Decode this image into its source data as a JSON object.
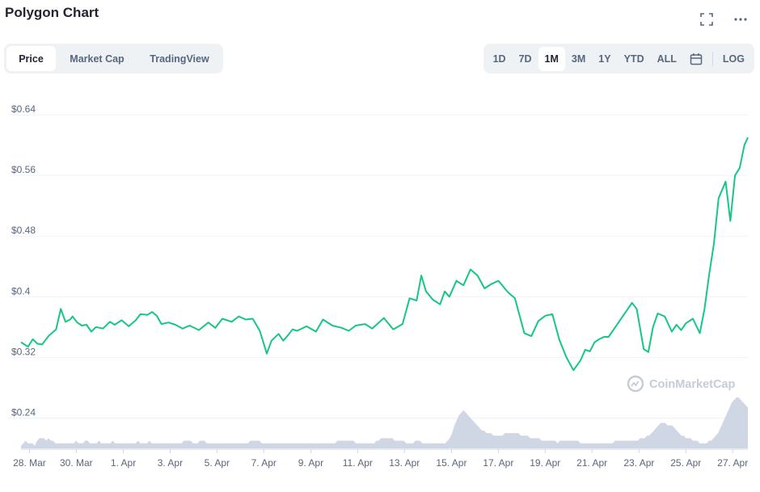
{
  "header": {
    "title": "Polygon Chart",
    "fullscreen_icon": "expand-icon",
    "more_icon": "more-dots-icon"
  },
  "tabs": [
    {
      "label": "Price",
      "active": true
    },
    {
      "label": "Market Cap",
      "active": false
    },
    {
      "label": "TradingView",
      "active": false
    }
  ],
  "ranges": [
    {
      "label": "1D",
      "active": false
    },
    {
      "label": "7D",
      "active": false
    },
    {
      "label": "1M",
      "active": true
    },
    {
      "label": "3M",
      "active": false
    },
    {
      "label": "1Y",
      "active": false
    },
    {
      "label": "YTD",
      "active": false
    },
    {
      "label": "ALL",
      "active": false
    }
  ],
  "range_extra": {
    "calendar_icon": "calendar-icon",
    "log_label": "LOG"
  },
  "watermark": "CoinMarketCap",
  "colors": {
    "line": "#16c784",
    "volume": "#cfd6e4",
    "grid": "#eff2f5",
    "text": "#58667e"
  },
  "chart_data": {
    "type": "line",
    "title": "",
    "ylabel": "",
    "xlabel": "",
    "ylim": [
      0.2,
      0.655
    ],
    "yticks": [
      {
        "label": "$0.64",
        "value": 0.64
      },
      {
        "label": "$0.56",
        "value": 0.56
      },
      {
        "label": "$0.48",
        "value": 0.48
      },
      {
        "label": "$0.4",
        "value": 0.4
      },
      {
        "label": "$0.32",
        "value": 0.32
      },
      {
        "label": "$0.24",
        "value": 0.24
      }
    ],
    "xticks": [
      {
        "label": "28. Mar",
        "x": 0.36
      },
      {
        "label": "30. Mar",
        "x": 2.36
      },
      {
        "label": "1. Apr",
        "x": 4.37
      },
      {
        "label": "3. Apr",
        "x": 6.37
      },
      {
        "label": "5. Apr",
        "x": 8.37
      },
      {
        "label": "7. Apr",
        "x": 10.37
      },
      {
        "label": "9. Apr",
        "x": 12.38
      },
      {
        "label": "11. Apr",
        "x": 14.38
      },
      {
        "label": "13. Apr",
        "x": 16.38
      },
      {
        "label": "15. Apr",
        "x": 18.39
      },
      {
        "label": "17. Apr",
        "x": 20.39
      },
      {
        "label": "19. Apr",
        "x": 22.39
      },
      {
        "label": "21. Apr",
        "x": 24.39
      },
      {
        "label": "23. Apr",
        "x": 26.4
      },
      {
        "label": "25. Apr",
        "x": 28.4
      },
      {
        "label": "27. Apr",
        "x": 30.4
      }
    ],
    "x_unit": "days",
    "series": [
      {
        "name": "",
        "x": [
          0.0,
          0.3,
          0.5,
          0.7,
          0.9,
          1.2,
          1.5,
          1.7,
          1.9,
          2.1,
          2.2,
          2.4,
          2.6,
          2.8,
          3.0,
          3.2,
          3.5,
          3.8,
          4.0,
          4.3,
          4.6,
          4.9,
          5.1,
          5.4,
          5.6,
          5.8,
          6.0,
          6.3,
          6.6,
          6.9,
          7.2,
          7.6,
          8.0,
          8.3,
          8.6,
          9.0,
          9.3,
          9.6,
          9.9,
          10.2,
          10.5,
          10.7,
          11.0,
          11.2,
          11.4,
          11.6,
          11.8,
          12.2,
          12.6,
          12.9,
          13.3,
          13.7,
          14.0,
          14.3,
          14.7,
          15.0,
          15.5,
          15.9,
          16.3,
          16.6,
          16.9,
          17.1,
          17.3,
          17.6,
          17.9,
          18.1,
          18.3,
          18.6,
          18.9,
          19.2,
          19.5,
          19.8,
          20.1,
          20.4,
          20.8,
          21.1,
          21.5,
          21.8,
          22.1,
          22.4,
          22.7,
          23.0,
          23.3,
          23.6,
          23.9,
          24.1,
          24.3,
          24.5,
          24.7,
          24.9,
          25.1,
          25.5,
          25.9,
          26.1,
          26.3,
          26.6,
          26.8,
          27.0,
          27.2,
          27.5,
          27.8,
          28.0,
          28.2,
          28.4,
          28.7,
          29.0,
          29.2,
          29.4,
          29.6,
          29.8,
          30.1,
          30.3,
          30.5,
          30.7,
          30.9,
          31.05
        ],
        "y": [
          0.34,
          0.334,
          0.344,
          0.338,
          0.337,
          0.349,
          0.357,
          0.384,
          0.367,
          0.37,
          0.374,
          0.366,
          0.362,
          0.363,
          0.354,
          0.36,
          0.358,
          0.367,
          0.363,
          0.369,
          0.361,
          0.369,
          0.377,
          0.376,
          0.38,
          0.375,
          0.364,
          0.366,
          0.363,
          0.358,
          0.362,
          0.356,
          0.366,
          0.359,
          0.371,
          0.367,
          0.374,
          0.37,
          0.371,
          0.355,
          0.325,
          0.342,
          0.351,
          0.342,
          0.349,
          0.357,
          0.355,
          0.361,
          0.354,
          0.37,
          0.362,
          0.359,
          0.355,
          0.362,
          0.364,
          0.358,
          0.372,
          0.357,
          0.364,
          0.398,
          0.395,
          0.428,
          0.407,
          0.396,
          0.39,
          0.407,
          0.4,
          0.421,
          0.415,
          0.436,
          0.428,
          0.411,
          0.417,
          0.421,
          0.406,
          0.398,
          0.352,
          0.348,
          0.368,
          0.375,
          0.377,
          0.343,
          0.32,
          0.303,
          0.316,
          0.33,
          0.328,
          0.34,
          0.344,
          0.347,
          0.347,
          0.365,
          0.383,
          0.392,
          0.384,
          0.331,
          0.327,
          0.36,
          0.378,
          0.374,
          0.354,
          0.363,
          0.356,
          0.365,
          0.371,
          0.352,
          0.384,
          0.43,
          0.47,
          0.53,
          0.552,
          0.5,
          0.56,
          0.57,
          0.6,
          0.61
        ]
      }
    ],
    "volume": [
      1,
      2,
      3,
      2,
      2,
      2,
      1,
      3,
      4,
      4,
      4,
      3,
      4,
      3,
      3,
      2,
      2,
      2,
      2,
      2,
      2,
      2,
      2,
      2,
      3,
      2,
      2,
      2,
      3,
      3,
      2,
      2,
      2,
      2,
      3,
      2,
      2,
      2,
      2,
      2,
      3,
      2,
      2,
      2,
      2,
      2,
      2,
      2,
      2,
      2,
      2,
      3,
      2,
      2,
      2,
      2,
      3,
      2,
      2,
      2,
      2,
      2,
      2,
      2,
      2,
      2,
      2,
      2,
      2,
      2,
      2,
      3,
      3,
      3,
      3,
      2,
      2,
      2,
      3,
      3,
      3,
      2,
      2,
      2,
      2,
      2,
      2,
      2,
      2,
      2,
      2,
      2,
      2,
      2,
      2,
      2,
      2,
      2,
      2,
      2,
      3,
      3,
      3,
      3,
      3,
      2,
      2,
      2,
      2,
      2,
      2,
      2,
      2,
      2,
      2,
      2,
      2,
      2,
      2,
      2,
      2,
      2,
      2,
      2,
      2,
      2,
      2,
      2,
      2,
      2,
      2,
      2,
      2,
      2,
      2,
      2,
      2,
      2,
      3,
      3,
      3,
      3,
      3,
      3,
      3,
      3,
      2,
      2,
      2,
      2,
      2,
      2,
      2,
      2,
      2,
      3,
      3,
      4,
      4,
      4,
      4,
      4,
      4,
      3,
      3,
      3,
      3,
      3,
      2,
      2,
      2,
      2,
      3,
      3,
      3,
      2,
      2,
      2,
      2,
      2,
      2,
      2,
      2,
      2,
      2,
      2,
      3,
      4,
      6,
      9,
      11,
      13,
      14,
      15,
      14,
      13,
      12,
      11,
      10,
      9,
      8,
      7,
      7,
      6,
      6,
      6,
      5,
      5,
      5,
      5,
      5,
      6,
      6,
      6,
      6,
      6,
      6,
      6,
      5,
      5,
      5,
      5,
      4,
      4,
      4,
      4,
      4,
      3,
      3,
      3,
      3,
      3,
      3,
      3,
      2,
      3,
      3,
      3,
      3,
      3,
      3,
      3,
      3,
      3,
      2,
      2,
      2,
      2,
      2,
      2,
      2,
      2,
      2,
      2,
      2,
      2,
      2,
      2,
      2,
      3,
      3,
      3,
      3,
      3,
      3,
      3,
      3,
      3,
      3,
      3,
      4,
      4,
      4,
      5,
      5,
      6,
      7,
      8,
      9,
      10,
      10,
      10,
      9,
      9,
      9,
      8,
      7,
      6,
      5,
      5,
      4,
      4,
      4,
      3,
      3,
      3,
      2,
      2,
      2,
      2,
      3,
      3,
      4,
      5,
      6,
      8,
      10,
      12,
      14,
      16,
      18,
      19,
      20,
      20,
      19,
      18,
      17,
      16
    ]
  }
}
